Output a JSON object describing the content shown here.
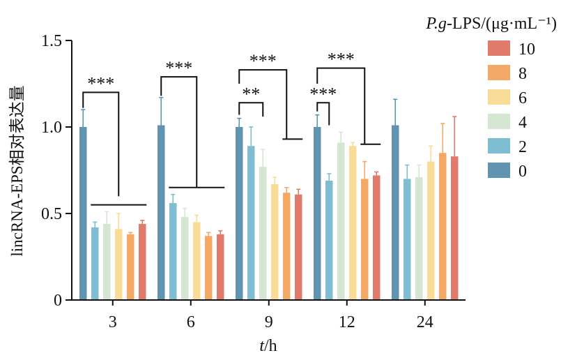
{
  "chart_data": {
    "type": "bar",
    "title": "",
    "xlabel_var": "t",
    "xlabel_unit": "/h",
    "ylabel": "lincRNA-EPS相对表达量",
    "ylim": [
      0,
      1.5
    ],
    "yticks": [
      "0",
      "0.5",
      "1.0",
      "1.5"
    ],
    "categories": [
      "3",
      "6",
      "9",
      "12",
      "24"
    ],
    "legend_title_var": "P.g",
    "legend_title_rest": "-LPS/(μg·mL⁻¹)",
    "legend_position": "top-right",
    "series": [
      {
        "name": "0",
        "color": "#5f93b0",
        "values": [
          1.0,
          1.01,
          1.0,
          1.0,
          1.01
        ],
        "errors": [
          0.1,
          0.16,
          0.05,
          0.07,
          0.15
        ]
      },
      {
        "name": "2",
        "color": "#7fbdd3",
        "values": [
          0.42,
          0.56,
          0.89,
          0.69,
          0.7
        ],
        "errors": [
          0.03,
          0.05,
          0.11,
          0.04,
          0.08
        ]
      },
      {
        "name": "4",
        "color": "#d5e7d2",
        "values": [
          0.44,
          0.48,
          0.77,
          0.91,
          0.71
        ],
        "errors": [
          0.07,
          0.05,
          0.1,
          0.06,
          0.07
        ]
      },
      {
        "name": "6",
        "color": "#f9dc98",
        "values": [
          0.41,
          0.45,
          0.67,
          0.89,
          0.8
        ],
        "errors": [
          0.09,
          0.04,
          0.04,
          0.02,
          0.09
        ]
      },
      {
        "name": "8",
        "color": "#f3a866",
        "values": [
          0.38,
          0.37,
          0.62,
          0.7,
          0.85
        ],
        "errors": [
          0.01,
          0.02,
          0.03,
          0.1,
          0.17
        ]
      },
      {
        "name": "10",
        "color": "#e07a6a",
        "values": [
          0.44,
          0.38,
          0.61,
          0.72,
          0.83
        ],
        "errors": [
          0.02,
          0.02,
          0.03,
          0.02,
          0.23
        ]
      }
    ],
    "annotations": [
      {
        "text": "***",
        "category": "3"
      },
      {
        "text": "***",
        "category": "6"
      },
      {
        "text": "***",
        "category": "9"
      },
      {
        "text": "**",
        "category": "9"
      },
      {
        "text": "***",
        "category": "12"
      },
      {
        "text": "***",
        "category": "12"
      }
    ]
  }
}
